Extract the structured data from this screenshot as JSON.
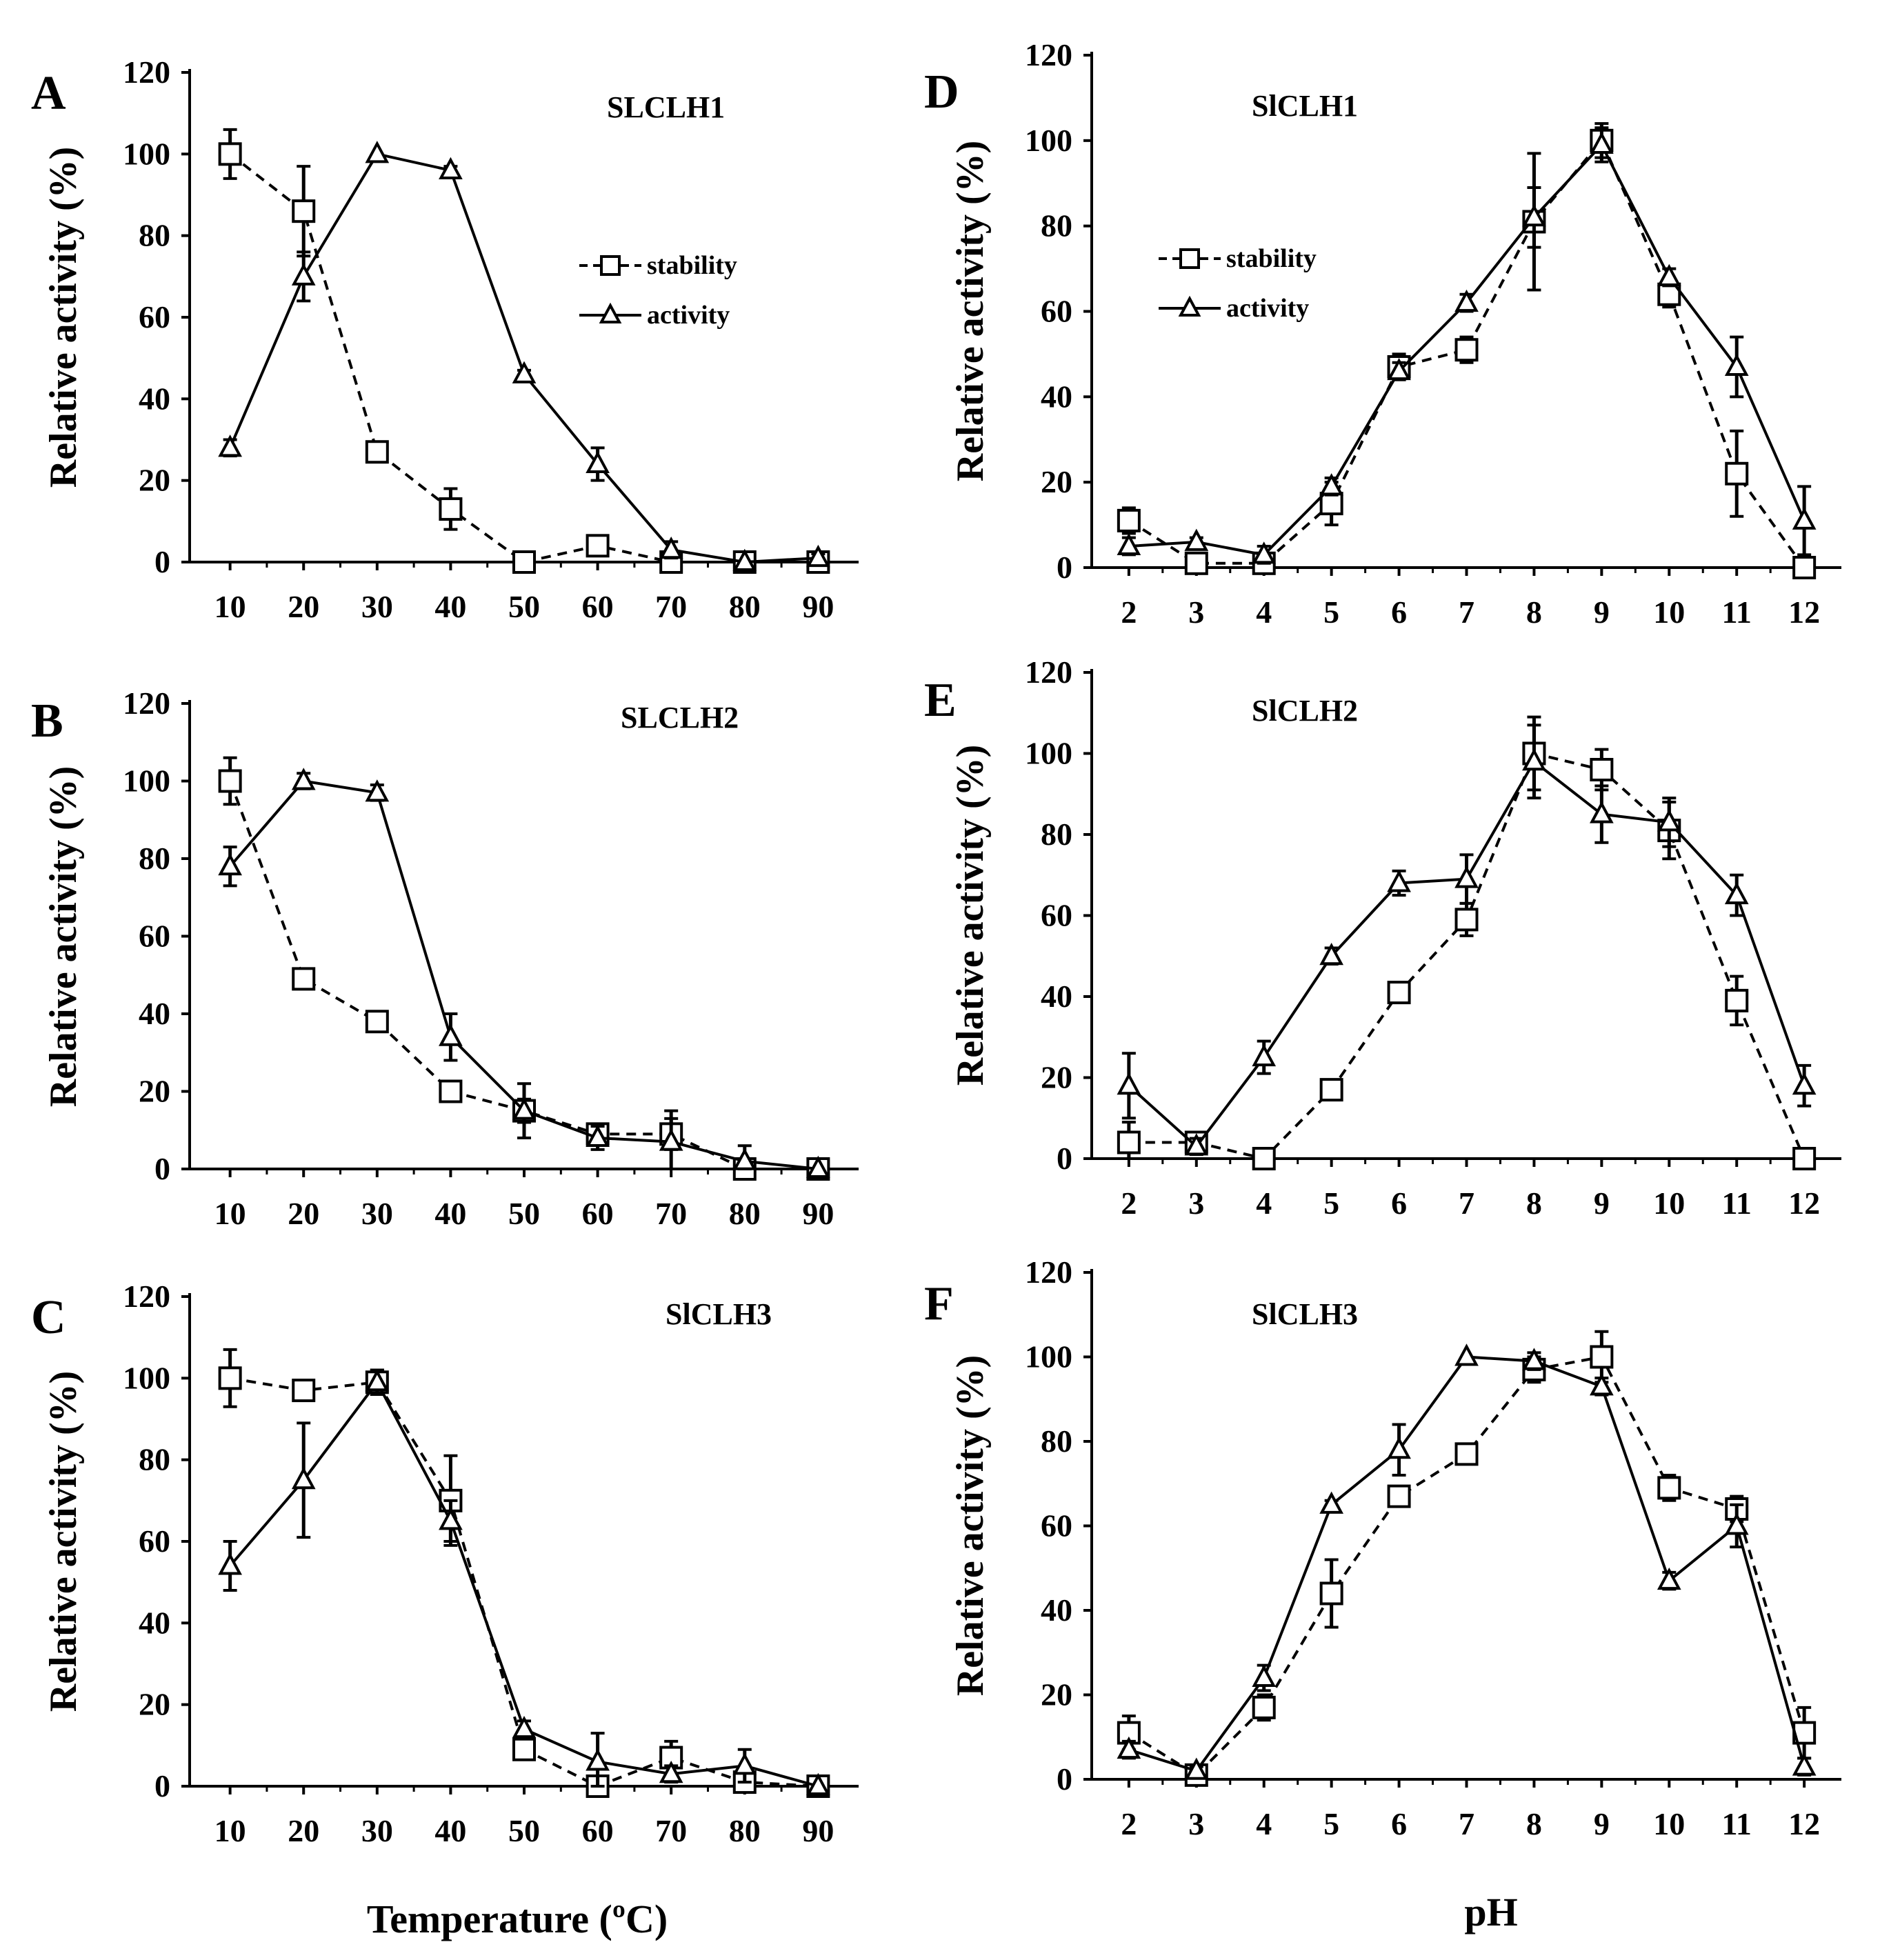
{
  "figure": {
    "ylabel": "Relative activity (%)",
    "xlabel_left": "Temperature (ºC)",
    "xlabel_right": "pH",
    "legend": {
      "stability": "stability",
      "activity": "activity"
    },
    "colors": {
      "line": "#000000",
      "marker_fill": "#ffffff",
      "background": "#ffffff"
    }
  },
  "chart_data": [
    {
      "panel": "A",
      "title": "SLCLH1",
      "type": "line",
      "categories": [
        "10",
        "20",
        "30",
        "40",
        "50",
        "60",
        "70",
        "80",
        "90"
      ],
      "x": [
        10,
        20,
        30,
        40,
        50,
        60,
        70,
        80,
        90
      ],
      "ylim": [
        0,
        120
      ],
      "yticks": [
        0,
        20,
        40,
        60,
        80,
        100,
        120
      ],
      "series": [
        {
          "name": "stability",
          "style": "dashed",
          "marker": "square",
          "values": [
            100,
            86,
            27,
            13,
            0,
            4,
            0,
            0,
            0
          ],
          "errors": [
            6,
            11,
            2,
            5,
            0,
            2,
            0,
            0,
            0
          ]
        },
        {
          "name": "activity",
          "style": "solid",
          "marker": "triangle",
          "values": [
            28,
            70,
            100,
            96,
            46,
            24,
            3,
            0,
            1
          ],
          "errors": [
            2,
            6,
            0,
            1,
            1,
            4,
            2,
            0,
            1
          ]
        }
      ]
    },
    {
      "panel": "B",
      "title": "SLCLH2",
      "type": "line",
      "categories": [
        "10",
        "20",
        "30",
        "40",
        "50",
        "60",
        "70",
        "80",
        "90"
      ],
      "x": [
        10,
        20,
        30,
        40,
        50,
        60,
        70,
        80,
        90
      ],
      "ylim": [
        0,
        120
      ],
      "yticks": [
        0,
        20,
        40,
        60,
        80,
        100,
        120
      ],
      "series": [
        {
          "name": "stability",
          "style": "dashed",
          "marker": "square",
          "values": [
            100,
            49,
            38,
            20,
            15,
            9,
            9,
            0,
            0
          ],
          "errors": [
            6,
            2,
            2,
            2,
            3,
            2,
            4,
            0,
            0
          ]
        },
        {
          "name": "activity",
          "style": "solid",
          "marker": "triangle",
          "values": [
            78,
            100,
            97,
            34,
            15,
            8,
            7,
            2,
            0
          ],
          "errors": [
            5,
            2,
            2,
            6,
            7,
            3,
            8,
            4,
            0
          ]
        }
      ]
    },
    {
      "panel": "C",
      "title": "SlCLH3",
      "type": "line",
      "categories": [
        "10",
        "20",
        "30",
        "40",
        "50",
        "60",
        "70",
        "80",
        "90"
      ],
      "x": [
        10,
        20,
        30,
        40,
        50,
        60,
        70,
        80,
        90
      ],
      "ylim": [
        0,
        120
      ],
      "yticks": [
        0,
        20,
        40,
        60,
        80,
        100,
        120
      ],
      "series": [
        {
          "name": "stability",
          "style": "dashed",
          "marker": "square",
          "values": [
            100,
            97,
            99,
            70,
            9,
            0,
            7,
            1,
            0
          ],
          "errors": [
            7,
            2,
            3,
            11,
            2,
            0,
            4,
            1,
            0
          ]
        },
        {
          "name": "activity",
          "style": "solid",
          "marker": "triangle",
          "values": [
            54,
            75,
            99,
            65,
            14,
            6,
            3,
            5,
            0
          ],
          "errors": [
            6,
            14,
            3,
            5,
            2,
            7,
            2,
            4,
            0
          ]
        }
      ]
    },
    {
      "panel": "D",
      "title": "SlCLH1",
      "type": "line",
      "categories": [
        "2",
        "3",
        "4",
        "5",
        "6",
        "7",
        "8",
        "9",
        "10",
        "11",
        "12"
      ],
      "x": [
        2,
        3,
        4,
        5,
        6,
        7,
        8,
        9,
        10,
        11,
        12
      ],
      "ylim": [
        0,
        120
      ],
      "yticks": [
        0,
        20,
        40,
        60,
        80,
        100,
        120
      ],
      "series": [
        {
          "name": "stability",
          "style": "dashed",
          "marker": "square",
          "values": [
            11,
            1,
            1,
            15,
            47,
            51,
            81,
            100,
            64,
            22,
            0
          ],
          "errors": [
            3,
            0,
            1,
            5,
            3,
            3,
            16,
            4,
            3,
            10,
            0
          ]
        },
        {
          "name": "activity",
          "style": "solid",
          "marker": "triangle",
          "values": [
            5,
            6,
            3,
            19,
            46,
            62,
            82,
            99,
            68,
            47,
            11
          ],
          "errors": [
            2,
            1,
            2,
            2,
            2,
            2,
            7,
            4,
            2,
            7,
            8
          ]
        }
      ]
    },
    {
      "panel": "E",
      "title": "SlCLH2",
      "type": "line",
      "categories": [
        "2",
        "3",
        "4",
        "5",
        "6",
        "7",
        "8",
        "9",
        "10",
        "11",
        "12"
      ],
      "x": [
        2,
        3,
        4,
        5,
        6,
        7,
        8,
        9,
        10,
        11,
        12
      ],
      "ylim": [
        0,
        120
      ],
      "yticks": [
        0,
        20,
        40,
        60,
        80,
        100,
        120
      ],
      "series": [
        {
          "name": "stability",
          "style": "dashed",
          "marker": "square",
          "values": [
            4,
            4,
            0,
            17,
            41,
            59,
            100,
            96,
            81,
            39,
            0
          ],
          "errors": [
            5,
            2,
            0,
            2,
            2,
            4,
            9,
            5,
            7,
            6,
            0
          ]
        },
        {
          "name": "activity",
          "style": "solid",
          "marker": "triangle",
          "values": [
            18,
            3,
            25,
            50,
            68,
            69,
            98,
            85,
            83,
            65,
            18
          ],
          "errors": [
            8,
            2,
            4,
            2,
            3,
            6,
            9,
            7,
            6,
            5,
            5
          ]
        }
      ]
    },
    {
      "panel": "F",
      "title": "SlCLH3",
      "type": "line",
      "categories": [
        "2",
        "3",
        "4",
        "5",
        "6",
        "7",
        "8",
        "9",
        "10",
        "11",
        "12"
      ],
      "x": [
        2,
        3,
        4,
        5,
        6,
        7,
        8,
        9,
        10,
        11,
        12
      ],
      "ylim": [
        0,
        120
      ],
      "yticks": [
        0,
        20,
        40,
        60,
        80,
        100,
        120
      ],
      "series": [
        {
          "name": "stability",
          "style": "dashed",
          "marker": "square",
          "values": [
            11,
            1,
            17,
            44,
            67,
            77,
            97,
            100,
            69,
            64,
            11
          ],
          "errors": [
            4,
            1,
            3,
            8,
            2,
            2,
            3,
            6,
            3,
            3,
            6
          ]
        },
        {
          "name": "activity",
          "style": "solid",
          "marker": "triangle",
          "values": [
            7,
            2,
            24,
            65,
            78,
            100,
            99,
            93,
            47,
            60,
            3
          ],
          "errors": [
            2,
            1,
            3,
            1,
            6,
            0,
            2,
            2,
            2,
            5,
            2
          ]
        }
      ]
    }
  ]
}
